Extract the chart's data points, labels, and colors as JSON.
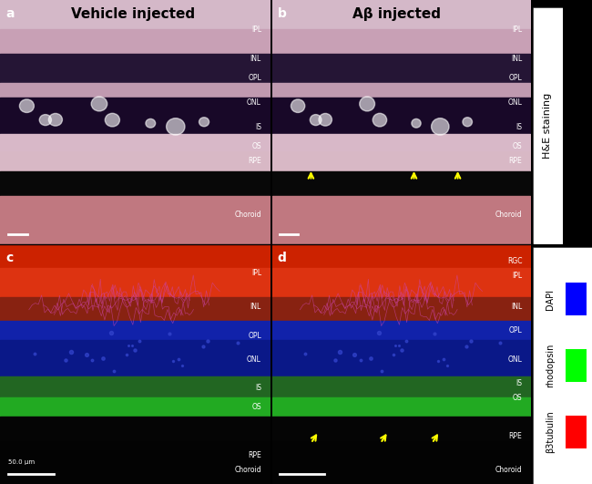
{
  "title_left": "Vehicle injected",
  "title_right": "Aβ injected",
  "panel_labels": [
    "a",
    "b",
    "c",
    "d"
  ],
  "he_labels_a": [
    "IPL",
    "INL",
    "OPL",
    "ONL",
    "IS",
    "OS",
    "RPE",
    "Choroid"
  ],
  "he_labels_b": [
    "IPL",
    "INL",
    "OPL",
    "ONL",
    "IS",
    "OS",
    "RPE",
    "Choroid"
  ],
  "if_labels_c": [
    "IPL",
    "INL",
    "OPL",
    "ONL",
    "IS",
    "OS",
    "RPE",
    "Choroid"
  ],
  "if_labels_d": [
    "RGC",
    "IPL",
    "INL",
    "OPL",
    "ONL",
    "IS",
    "OS",
    "RPE",
    "Choroid"
  ],
  "right_label_top": "H&E staining",
  "right_label_bottom_items": [
    "DAPI",
    "rhodopsin",
    "β3tubulin"
  ],
  "right_label_bottom_colors": [
    "#0000ff",
    "#00ff00",
    "#ff0000"
  ],
  "background_color": "#000000",
  "scalebar_label": "50.0 μm",
  "he_layer_colors": {
    "top_pink": "#e8c8d8",
    "ipl_pink": "#d4a8c0",
    "inl_dark": "#2a1a3a",
    "opl_pink": "#c8a0b8",
    "onl_dark": "#1a0a2a",
    "is_pink": "#d8b0c8",
    "os_pink": "#e0c0d0",
    "rpe_black": "#0a0a0a",
    "choroid_pink": "#c89098"
  },
  "if_layer_colors": {
    "rgc_red": "#cc2200",
    "ipl_red": "#dd3311",
    "inl_red_blue": "#993322",
    "opl_blue": "#223399",
    "onl_blue": "#112288",
    "is_green": "#228822",
    "os_green": "#33aa33",
    "rpe_dark": "#050505",
    "choroid_black": "#020202"
  }
}
